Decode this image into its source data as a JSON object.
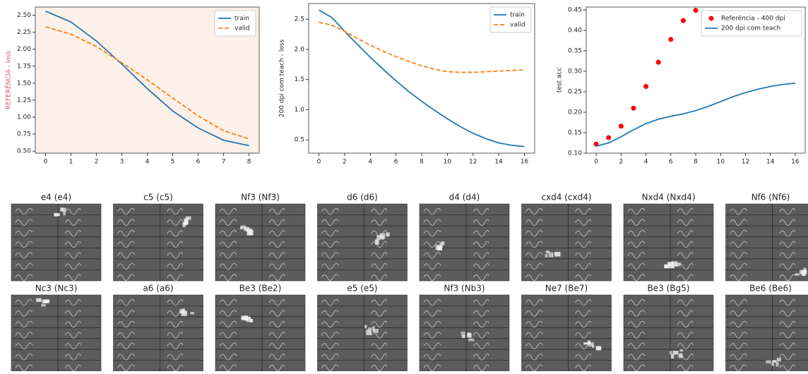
{
  "chart_data": [
    {
      "type": "line",
      "ylabel": "REFERÊNCIA - loss",
      "ylabel_color": "#d9546e",
      "background": "#fdf0e8",
      "legend": "upper right",
      "xlim": [
        -0.4,
        8.4
      ],
      "xticks": [
        0,
        1,
        2,
        3,
        4,
        5,
        6,
        7,
        8
      ],
      "ylim": [
        0.47,
        2.62
      ],
      "yticks": [
        {
          "value": 0.5,
          "label": "0.50"
        },
        {
          "value": 0.75,
          "label": "0.75"
        },
        {
          "value": 1,
          "label": "1.00"
        },
        {
          "value": 1.25,
          "label": "1.25"
        },
        {
          "value": 1.5,
          "label": "1.50"
        },
        {
          "value": 1.75,
          "label": "1.75"
        },
        {
          "value": 2,
          "label": "2.00"
        },
        {
          "value": 2.25,
          "label": "2.25"
        },
        {
          "value": 2.5,
          "label": "2.50"
        }
      ],
      "series": [
        {
          "name": "train",
          "color": "#1f77b4",
          "dash": "solid",
          "x": [
            0,
            1,
            2,
            3,
            4,
            5,
            6,
            7,
            8
          ],
          "values": [
            2.56,
            2.4,
            2.12,
            1.78,
            1.42,
            1.09,
            0.84,
            0.66,
            0.58
          ]
        },
        {
          "name": "valid",
          "color": "#ff7f0e",
          "dash": "dashed",
          "x": [
            0,
            1,
            2,
            3,
            4,
            5,
            6,
            7,
            8
          ],
          "values": [
            2.33,
            2.22,
            2.04,
            1.8,
            1.55,
            1.28,
            1.02,
            0.8,
            0.68
          ]
        }
      ]
    },
    {
      "type": "line",
      "ylabel": "200 dpi com teach - loss",
      "legend": "upper right",
      "xlim": [
        -0.8,
        16.8
      ],
      "xticks": [
        0,
        2,
        4,
        6,
        8,
        10,
        12,
        14,
        16
      ],
      "ylim": [
        0.28,
        2.76
      ],
      "yticks": [
        0.5,
        {
          "value": 1,
          "label": "1.0"
        },
        1.5,
        {
          "value": 2,
          "label": "2.0"
        },
        2.5
      ],
      "series": [
        {
          "name": "train",
          "color": "#1f77b4",
          "dash": "solid",
          "x": [
            0,
            1,
            2,
            3,
            4,
            5,
            6,
            7,
            8,
            9,
            10,
            11,
            12,
            13,
            14,
            15,
            16
          ],
          "values": [
            2.65,
            2.53,
            2.3,
            2.08,
            1.87,
            1.67,
            1.48,
            1.3,
            1.14,
            0.99,
            0.85,
            0.72,
            0.61,
            0.52,
            0.45,
            0.41,
            0.39
          ]
        },
        {
          "name": "valid",
          "color": "#ff7f0e",
          "dash": "dashed",
          "x": [
            0,
            1,
            2,
            3,
            4,
            5,
            6,
            7,
            8,
            9,
            10,
            11,
            12,
            13,
            14,
            15,
            16
          ],
          "values": [
            2.45,
            2.4,
            2.3,
            2.18,
            2.07,
            1.97,
            1.88,
            1.8,
            1.73,
            1.67,
            1.63,
            1.62,
            1.62,
            1.63,
            1.64,
            1.65,
            1.66
          ]
        }
      ]
    },
    {
      "type": "line",
      "ylabel": "test acc",
      "legend": "upper right",
      "xlim": [
        -0.8,
        16.8
      ],
      "xticks": [
        0,
        2,
        4,
        6,
        8,
        10,
        12,
        14,
        16
      ],
      "ylim": [
        0.1,
        0.457
      ],
      "yticks": [
        {
          "value": 0.1,
          "label": "0.10"
        },
        0.15,
        {
          "value": 0.2,
          "label": "0.20"
        },
        0.25,
        {
          "value": 0.3,
          "label": "0.30"
        },
        0.35,
        {
          "value": 0.4,
          "label": "0.40"
        },
        0.45
      ],
      "series": [
        {
          "name": "Referência - 400 dpi",
          "color": "#ff0000",
          "type": "scatter",
          "x": [
            0,
            1,
            2,
            3,
            4,
            5,
            6,
            7,
            8
          ],
          "values": [
            0.122,
            0.138,
            0.166,
            0.21,
            0.263,
            0.322,
            0.378,
            0.424,
            0.449
          ]
        },
        {
          "name": "200 dpi com teach",
          "color": "#1f77b4",
          "type": "line",
          "dash": "solid",
          "x": [
            0,
            1,
            2,
            3,
            4,
            5,
            6,
            7,
            8,
            9,
            10,
            11,
            12,
            13,
            14,
            15,
            16
          ],
          "values": [
            0.117,
            0.125,
            0.14,
            0.157,
            0.172,
            0.183,
            0.19,
            0.196,
            0.204,
            0.214,
            0.226,
            0.238,
            0.248,
            0.256,
            0.263,
            0.268,
            0.271
          ]
        }
      ]
    }
  ],
  "tiles": [
    {
      "title": "e4 (e4)"
    },
    {
      "title": "c5 (c5)"
    },
    {
      "title": "Nf3 (Nf3)"
    },
    {
      "title": "d6 (d6)"
    },
    {
      "title": "d4 (d4)"
    },
    {
      "title": "cxd4 (cxd4)"
    },
    {
      "title": "Nxd4 (Nxd4)"
    },
    {
      "title": "Nf6 (Nf6)"
    },
    {
      "title": "Nc3 (Nc3)"
    },
    {
      "title": "a6 (a6)"
    },
    {
      "title": "Be3 (Be2)"
    },
    {
      "title": "e5 (e5)"
    },
    {
      "title": "Nf3 (Nb3)"
    },
    {
      "title": "Ne7 (Be7)"
    },
    {
      "title": "Be3 (Bg5)"
    },
    {
      "title": "Be6 (Be6)"
    }
  ]
}
